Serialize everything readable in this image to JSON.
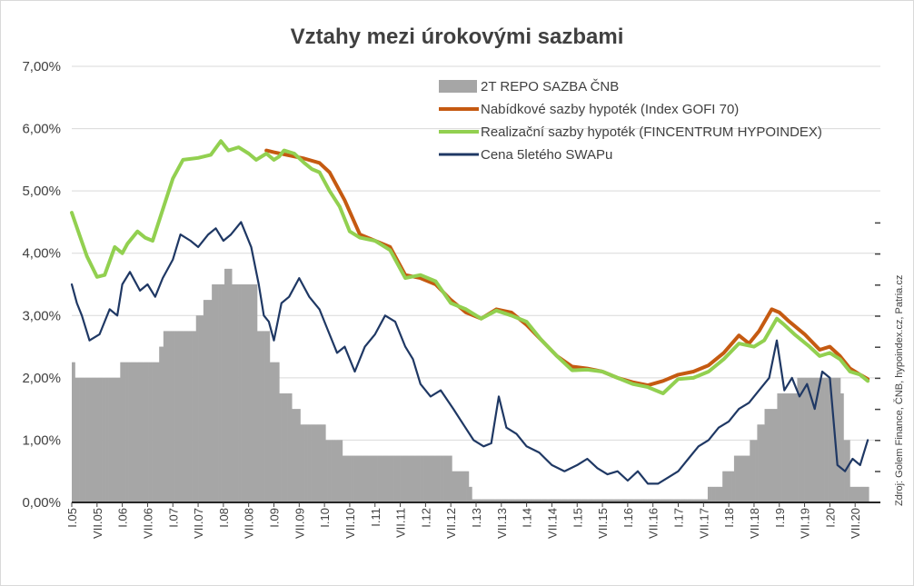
{
  "chart_data": {
    "type": "bar+line",
    "title": "Vztahy mezi úrokovými sazbami",
    "source_note": "Zdroj: Golem Finance, ČNB, hypoindex.cz, Patria.cz",
    "y_range": [
      0,
      7
    ],
    "y_ticks": [
      "0,00%",
      "1,00%",
      "2,00%",
      "3,00%",
      "4,00%",
      "5,00%",
      "6,00%",
      "7,00%"
    ],
    "x_range": [
      2005.0,
      2021.0
    ],
    "x_ticks": [
      "I.05",
      "VII.05",
      "I.06",
      "VII.06",
      "I.07",
      "VII.07",
      "I.08",
      "VII.08",
      "I.09",
      "VII.09",
      "I.10",
      "VII.10",
      "I.11",
      "VII.11",
      "I.12",
      "VII.12",
      "I.13",
      "VII.13",
      "I.14",
      "VII.14",
      "I.15",
      "VII.15",
      "I.16",
      "VII.16",
      "I.17",
      "VII.17",
      "I.18",
      "VII.18",
      "I.19",
      "VII.19",
      "I.20",
      "VII.20"
    ],
    "grid": true,
    "legend_position": "top-right",
    "series": [
      {
        "name": "2T REPO SAZBA ČNB",
        "kind": "bar",
        "color": "#a6a6a6",
        "steps": [
          [
            2005.0,
            2.25
          ],
          [
            2005.05,
            2.0
          ],
          [
            2005.8,
            2.0
          ],
          [
            2005.95,
            2.25
          ],
          [
            2006.0,
            2.25
          ],
          [
            2006.55,
            2.25
          ],
          [
            2006.72,
            2.5
          ],
          [
            2006.8,
            2.75
          ],
          [
            2007.35,
            2.75
          ],
          [
            2007.45,
            3.0
          ],
          [
            2007.6,
            3.25
          ],
          [
            2007.75,
            3.5
          ],
          [
            2008.0,
            3.75
          ],
          [
            2008.15,
            3.5
          ],
          [
            2008.65,
            2.75
          ],
          [
            2008.9,
            2.25
          ],
          [
            2009.1,
            1.75
          ],
          [
            2009.35,
            1.5
          ],
          [
            2009.5,
            1.25
          ],
          [
            2010.0,
            1.0
          ],
          [
            2010.35,
            0.75
          ],
          [
            2012.5,
            0.5
          ],
          [
            2012.85,
            0.25
          ],
          [
            2012.9,
            0.05
          ],
          [
            2017.58,
            0.25
          ],
          [
            2017.87,
            0.5
          ],
          [
            2018.1,
            0.75
          ],
          [
            2018.4,
            1.0
          ],
          [
            2018.55,
            1.25
          ],
          [
            2018.7,
            1.5
          ],
          [
            2018.95,
            1.75
          ],
          [
            2019.35,
            2.0
          ],
          [
            2020.15,
            2.0
          ],
          [
            2020.2,
            1.75
          ],
          [
            2020.27,
            1.0
          ],
          [
            2020.38,
            0.25
          ],
          [
            2020.75,
            0.25
          ]
        ]
      },
      {
        "name": "Nabídkové sazby hypoték (Index GOFI 70)",
        "kind": "line",
        "color": "#c55a11",
        "x": [
          2008.85,
          2009.0,
          2009.3,
          2009.6,
          2009.9,
          2010.1,
          2010.4,
          2010.7,
          2011.0,
          2011.3,
          2011.6,
          2011.9,
          2012.2,
          2012.5,
          2012.8,
          2013.1,
          2013.4,
          2013.7,
          2014.0,
          2014.3,
          2014.6,
          2014.9,
          2015.2,
          2015.5,
          2015.8,
          2016.1,
          2016.4,
          2016.7,
          2017.0,
          2017.3,
          2017.6,
          2017.9,
          2018.2,
          2018.4,
          2018.6,
          2018.85,
          2019.0,
          2019.2,
          2019.5,
          2019.8,
          2020.0,
          2020.2,
          2020.4,
          2020.6,
          2020.75
        ],
        "y": [
          5.65,
          5.62,
          5.57,
          5.52,
          5.45,
          5.3,
          4.85,
          4.3,
          4.2,
          4.1,
          3.65,
          3.6,
          3.5,
          3.25,
          3.05,
          2.95,
          3.1,
          3.05,
          2.85,
          2.6,
          2.35,
          2.18,
          2.15,
          2.1,
          2.0,
          1.93,
          1.88,
          1.95,
          2.05,
          2.1,
          2.2,
          2.4,
          2.68,
          2.55,
          2.75,
          3.1,
          3.05,
          2.9,
          2.7,
          2.45,
          2.5,
          2.35,
          2.15,
          2.05,
          1.98
        ]
      },
      {
        "name": "Realizační sazby hypoték (FINCENTRUM HYPOINDEX)",
        "kind": "line",
        "color": "#92d050",
        "x": [
          2005.0,
          2005.15,
          2005.3,
          2005.5,
          2005.65,
          2005.85,
          2006.0,
          2006.1,
          2006.3,
          2006.45,
          2006.6,
          2006.8,
          2007.0,
          2007.2,
          2007.5,
          2007.75,
          2007.95,
          2008.1,
          2008.3,
          2008.5,
          2008.65,
          2008.85,
          2009.0,
          2009.1,
          2009.2,
          2009.4,
          2009.6,
          2009.75,
          2009.9,
          2010.1,
          2010.3,
          2010.5,
          2010.7,
          2011.0,
          2011.3,
          2011.6,
          2011.9,
          2012.2,
          2012.5,
          2012.8,
          2013.1,
          2013.4,
          2013.7,
          2014.0,
          2014.3,
          2014.6,
          2014.9,
          2015.2,
          2015.5,
          2015.8,
          2016.1,
          2016.4,
          2016.7,
          2017.0,
          2017.3,
          2017.6,
          2017.9,
          2018.2,
          2018.5,
          2018.7,
          2018.95,
          2019.1,
          2019.3,
          2019.6,
          2019.8,
          2020.0,
          2020.2,
          2020.4,
          2020.6,
          2020.75
        ],
        "y": [
          4.65,
          4.3,
          3.95,
          3.62,
          3.65,
          4.1,
          4.0,
          4.15,
          4.35,
          4.25,
          4.2,
          4.7,
          5.2,
          5.5,
          5.53,
          5.58,
          5.8,
          5.65,
          5.7,
          5.6,
          5.5,
          5.6,
          5.5,
          5.55,
          5.65,
          5.6,
          5.45,
          5.35,
          5.3,
          5.0,
          4.75,
          4.35,
          4.25,
          4.2,
          4.05,
          3.6,
          3.65,
          3.55,
          3.2,
          3.1,
          2.95,
          3.08,
          3.0,
          2.9,
          2.6,
          2.35,
          2.12,
          2.13,
          2.1,
          2.0,
          1.9,
          1.85,
          1.75,
          1.98,
          2.0,
          2.1,
          2.3,
          2.55,
          2.5,
          2.6,
          2.95,
          2.85,
          2.7,
          2.5,
          2.35,
          2.4,
          2.3,
          2.1,
          2.05,
          1.95
        ]
      },
      {
        "name": "Cena 5letého SWAPu",
        "kind": "line",
        "color": "#1f3864",
        "x": [
          2005.0,
          2005.1,
          2005.2,
          2005.35,
          2005.55,
          2005.75,
          2005.9,
          2006.0,
          2006.15,
          2006.35,
          2006.5,
          2006.65,
          2006.8,
          2007.0,
          2007.15,
          2007.35,
          2007.5,
          2007.7,
          2007.85,
          2008.0,
          2008.15,
          2008.35,
          2008.55,
          2008.7,
          2008.8,
          2008.9,
          2009.0,
          2009.15,
          2009.3,
          2009.5,
          2009.7,
          2009.9,
          2010.05,
          2010.25,
          2010.4,
          2010.6,
          2010.8,
          2011.0,
          2011.2,
          2011.4,
          2011.6,
          2011.75,
          2011.9,
          2012.1,
          2012.3,
          2012.55,
          2012.75,
          2012.95,
          2013.15,
          2013.3,
          2013.45,
          2013.6,
          2013.8,
          2014.0,
          2014.25,
          2014.5,
          2014.75,
          2015.0,
          2015.2,
          2015.4,
          2015.6,
          2015.8,
          2016.0,
          2016.2,
          2016.4,
          2016.6,
          2016.8,
          2017.0,
          2017.2,
          2017.4,
          2017.6,
          2017.8,
          2018.0,
          2018.2,
          2018.4,
          2018.6,
          2018.8,
          2018.95,
          2019.1,
          2019.25,
          2019.4,
          2019.55,
          2019.7,
          2019.85,
          2020.0,
          2020.15,
          2020.3,
          2020.45,
          2020.6,
          2020.75
        ],
        "y": [
          3.5,
          3.2,
          3.0,
          2.6,
          2.7,
          3.1,
          3.0,
          3.5,
          3.7,
          3.4,
          3.5,
          3.3,
          3.6,
          3.9,
          4.3,
          4.2,
          4.1,
          4.3,
          4.4,
          4.2,
          4.3,
          4.5,
          4.1,
          3.5,
          3.0,
          2.9,
          2.6,
          3.2,
          3.3,
          3.6,
          3.3,
          3.1,
          2.8,
          2.4,
          2.5,
          2.1,
          2.5,
          2.7,
          3.0,
          2.9,
          2.5,
          2.3,
          1.9,
          1.7,
          1.8,
          1.5,
          1.25,
          1.0,
          0.9,
          0.95,
          1.7,
          1.2,
          1.1,
          0.9,
          0.8,
          0.6,
          0.5,
          0.6,
          0.7,
          0.55,
          0.45,
          0.5,
          0.35,
          0.5,
          0.3,
          0.3,
          0.4,
          0.5,
          0.7,
          0.9,
          1.0,
          1.2,
          1.3,
          1.5,
          1.6,
          1.8,
          2.0,
          2.6,
          1.8,
          2.0,
          1.7,
          1.9,
          1.5,
          2.1,
          2.0,
          0.6,
          0.5,
          0.7,
          0.6,
          1.0
        ]
      }
    ]
  }
}
